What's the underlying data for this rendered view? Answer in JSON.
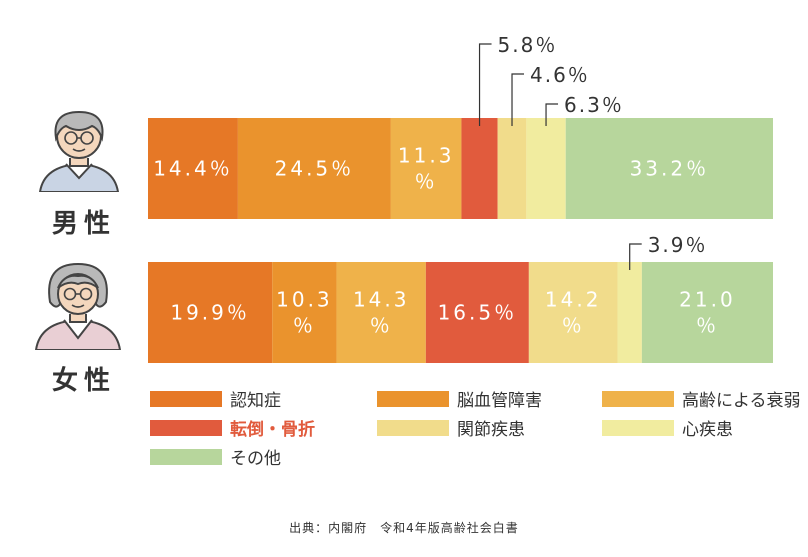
{
  "chart_data": {
    "type": "bar",
    "orientation": "horizontal-stacked-100",
    "rows": [
      {
        "label": "男性",
        "segments": [
          {
            "category": "認知症",
            "value": 14.4,
            "label": "14.4％"
          },
          {
            "category": "脳血管障害",
            "value": 24.5,
            "label": "24.5％"
          },
          {
            "category": "高齢による衰弱",
            "value": 11.3,
            "label": "11.3\n％"
          },
          {
            "category": "転倒・骨折",
            "value": 5.8,
            "label": "5.8％",
            "callout": true
          },
          {
            "category": "関節疾患",
            "value": 4.6,
            "label": "4.6％",
            "callout": true
          },
          {
            "category": "心疾患",
            "value": 6.3,
            "label": "6.3％",
            "callout": true
          },
          {
            "category": "その他",
            "value": 33.2,
            "label": "33.2％"
          }
        ]
      },
      {
        "label": "女性",
        "segments": [
          {
            "category": "認知症",
            "value": 19.9,
            "label": "19.9％"
          },
          {
            "category": "脳血管障害",
            "value": 10.3,
            "label": "10.3\n％"
          },
          {
            "category": "高齢による衰弱",
            "value": 14.3,
            "label": "14.3\n％"
          },
          {
            "category": "転倒・骨折",
            "value": 16.5,
            "label": "16.5％"
          },
          {
            "category": "関節疾患",
            "value": 14.2,
            "label": "14.2\n％"
          },
          {
            "category": "心疾患",
            "value": 3.9,
            "label": "3.9％",
            "callout": true
          },
          {
            "category": "その他",
            "value": 21.0,
            "label": "21.0\n％"
          }
        ]
      }
    ],
    "legend": [
      {
        "label": "認知症",
        "color": "#e67826"
      },
      {
        "label": "脳血管障害",
        "color": "#ea932d"
      },
      {
        "label": "高齢による衰弱",
        "color": "#efb24a"
      },
      {
        "label": "転倒・骨折",
        "color": "#e15b3d",
        "highlight": true,
        "text_color": "#e15b3d"
      },
      {
        "label": "関節疾患",
        "color": "#f1dc8b"
      },
      {
        "label": "心疾患",
        "color": "#f1ec9f"
      },
      {
        "label": "その他",
        "color": "#b7d69c"
      }
    ],
    "legend_position": "bottom",
    "source": "出典：内閣府　令和4年版高齢社会白書"
  }
}
